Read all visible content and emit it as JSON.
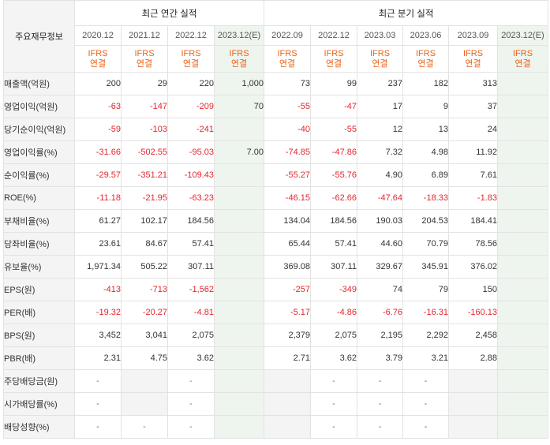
{
  "header": {
    "corner_label": "주요재무정보",
    "annual_title": "최근 연간 실적",
    "quarterly_title": "최근 분기 실적",
    "annual_periods": [
      "2020.12",
      "2021.12",
      "2022.12",
      "2023.12(E)"
    ],
    "quarterly_periods": [
      "2022.09",
      "2022.12",
      "2023.03",
      "2023.06",
      "2023.09",
      "2023.12(E)"
    ],
    "ifrs_line1": "IFRS",
    "ifrs_line2": "연결"
  },
  "rows": [
    {
      "label": "매출액(억원)",
      "annual": [
        "200",
        "29",
        "220",
        "1,000"
      ],
      "quarterly": [
        "73",
        "99",
        "237",
        "182",
        "313",
        ""
      ]
    },
    {
      "label": "영업이익(억원)",
      "annual": [
        "-63",
        "-147",
        "-209",
        "70"
      ],
      "quarterly": [
        "-55",
        "-47",
        "17",
        "9",
        "37",
        ""
      ]
    },
    {
      "label": "당기순이익(억원)",
      "annual": [
        "-59",
        "-103",
        "-241",
        ""
      ],
      "quarterly": [
        "-40",
        "-55",
        "12",
        "13",
        "24",
        ""
      ]
    },
    {
      "label": "영업이익률(%)",
      "annual": [
        "-31.66",
        "-502.55",
        "-95.03",
        "7.00"
      ],
      "quarterly": [
        "-74.85",
        "-47.86",
        "7.32",
        "4.98",
        "11.92",
        ""
      ]
    },
    {
      "label": "순이익률(%)",
      "annual": [
        "-29.57",
        "-351.21",
        "-109.43",
        ""
      ],
      "quarterly": [
        "-55.27",
        "-55.76",
        "4.90",
        "6.89",
        "7.61",
        ""
      ]
    },
    {
      "label": "ROE(%)",
      "annual": [
        "-11.18",
        "-21.95",
        "-63.23",
        ""
      ],
      "quarterly": [
        "-46.15",
        "-62.66",
        "-47.64",
        "-18.33",
        "-1.83",
        ""
      ]
    },
    {
      "label": "부채비율(%)",
      "annual": [
        "61.27",
        "102.17",
        "184.56",
        ""
      ],
      "quarterly": [
        "134.04",
        "184.56",
        "190.03",
        "204.53",
        "184.41",
        ""
      ]
    },
    {
      "label": "당좌비율(%)",
      "annual": [
        "23.61",
        "84.67",
        "57.41",
        ""
      ],
      "quarterly": [
        "65.44",
        "57.41",
        "44.60",
        "70.79",
        "78.56",
        ""
      ]
    },
    {
      "label": "유보율(%)",
      "annual": [
        "1,971.34",
        "505.22",
        "307.11",
        ""
      ],
      "quarterly": [
        "369.08",
        "307.11",
        "329.67",
        "345.91",
        "376.02",
        ""
      ]
    },
    {
      "label": "EPS(원)",
      "annual": [
        "-413",
        "-713",
        "-1,562",
        ""
      ],
      "quarterly": [
        "-257",
        "-349",
        "74",
        "79",
        "150",
        ""
      ]
    },
    {
      "label": "PER(배)",
      "annual": [
        "-19.32",
        "-20.27",
        "-4.81",
        ""
      ],
      "quarterly": [
        "-5.17",
        "-4.86",
        "-6.76",
        "-16.31",
        "-160.13",
        ""
      ]
    },
    {
      "label": "BPS(원)",
      "annual": [
        "3,452",
        "3,041",
        "2,075",
        ""
      ],
      "quarterly": [
        "2,379",
        "2,075",
        "2,195",
        "2,292",
        "2,458",
        ""
      ]
    },
    {
      "label": "PBR(배)",
      "annual": [
        "2.31",
        "4.75",
        "3.62",
        ""
      ],
      "quarterly": [
        "2.71",
        "3.62",
        "3.79",
        "3.21",
        "2.88",
        ""
      ]
    },
    {
      "label": "주당배당금(원)",
      "annual": [
        "-",
        "",
        "-",
        ""
      ],
      "quarterly": [
        "",
        "-",
        "-",
        "-",
        "",
        ""
      ]
    },
    {
      "label": "시가배당률(%)",
      "annual": [
        "-",
        "",
        "-",
        ""
      ],
      "quarterly": [
        "",
        "-",
        "-",
        "-",
        "",
        ""
      ]
    },
    {
      "label": "배당성향(%)",
      "annual": [
        "-",
        "-",
        "-",
        ""
      ],
      "quarterly": [
        "",
        "-",
        "-",
        "-",
        "",
        ""
      ]
    }
  ],
  "colors": {
    "negative": "#e3262e",
    "ifrs": "#e8641b",
    "estimate_bg": "#eef5ee",
    "header_bg": "#f4f4f4"
  }
}
